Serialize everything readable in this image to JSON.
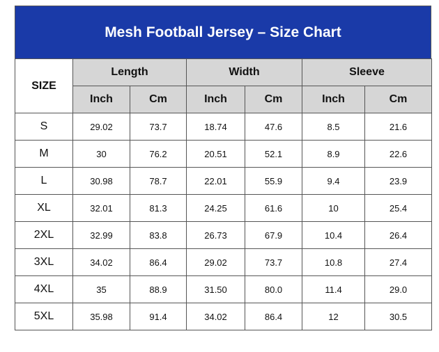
{
  "title": "Mesh Football Jersey – Size Chart",
  "header": {
    "size_label": "SIZE",
    "groups": [
      "Length",
      "Width",
      "Sleeve"
    ],
    "units": [
      "Inch",
      "Cm",
      "Inch",
      "Cm",
      "Inch",
      "Cm"
    ]
  },
  "rows": [
    {
      "size": "S",
      "values": [
        "29.02",
        "73.7",
        "18.74",
        "47.6",
        "8.5",
        "21.6"
      ]
    },
    {
      "size": "M",
      "values": [
        "30",
        "76.2",
        "20.51",
        "52.1",
        "8.9",
        "22.6"
      ]
    },
    {
      "size": "L",
      "values": [
        "30.98",
        "78.7",
        "22.01",
        "55.9",
        "9.4",
        "23.9"
      ]
    },
    {
      "size": "XL",
      "values": [
        "32.01",
        "81.3",
        "24.25",
        "61.6",
        "10",
        "25.4"
      ]
    },
    {
      "size": "2XL",
      "values": [
        "32.99",
        "83.8",
        "26.73",
        "67.9",
        "10.4",
        "26.4"
      ]
    },
    {
      "size": "3XL",
      "values": [
        "34.02",
        "86.4",
        "29.02",
        "73.7",
        "10.8",
        "27.4"
      ]
    },
    {
      "size": "4XL",
      "values": [
        "35",
        "88.9",
        "31.50",
        "80.0",
        "11.4",
        "29.0"
      ]
    },
    {
      "size": "5XL",
      "values": [
        "35.98",
        "91.4",
        "34.02",
        "86.4",
        "12",
        "30.5"
      ]
    }
  ]
}
